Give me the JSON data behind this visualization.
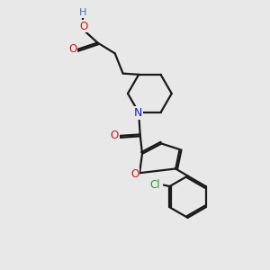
{
  "bg_color": "#e8e8e8",
  "bond_color": "#1a1a1a",
  "N_color": "#1a1acc",
  "O_color": "#cc1a1a",
  "Cl_color": "#2a9a2a",
  "H_color": "#4477aa",
  "font_size": 8.5,
  "line_width": 1.6,
  "figsize": [
    3.0,
    3.0
  ],
  "dpi": 100,
  "xlim": [
    0,
    10
  ],
  "ylim": [
    0,
    10
  ]
}
